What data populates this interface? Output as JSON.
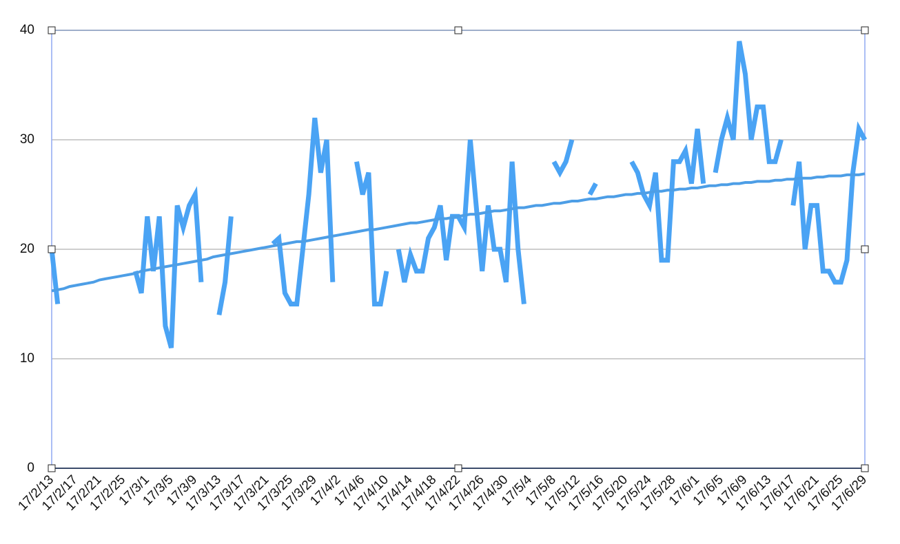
{
  "chart_data": {
    "type": "line",
    "categories": [
      "17/2/13",
      null,
      null,
      null,
      "17/2/17",
      null,
      null,
      null,
      "17/2/21",
      null,
      null,
      null,
      "17/2/25",
      null,
      null,
      null,
      "17/3/1",
      null,
      null,
      null,
      "17/3/5",
      null,
      null,
      null,
      "17/3/9",
      null,
      null,
      null,
      "17/3/13",
      null,
      null,
      null,
      "17/3/17",
      null,
      null,
      null,
      "17/3/21",
      null,
      null,
      null,
      "17/3/25",
      null,
      null,
      null,
      "17/3/29",
      null,
      null,
      null,
      "17/4/2",
      null,
      null,
      null,
      "17/4/6",
      null,
      null,
      null,
      "17/4/10",
      null,
      null,
      null,
      "17/4/14",
      null,
      null,
      null,
      "17/4/18",
      null,
      null,
      null,
      "17/4/22",
      null,
      null,
      null,
      "17/4/26",
      null,
      null,
      null,
      "17/4/30",
      null,
      null,
      null,
      "17/5/4",
      null,
      null,
      null,
      "17/5/8",
      null,
      null,
      null,
      "17/5/12",
      null,
      null,
      null,
      "17/5/16",
      null,
      null,
      null,
      "17/5/20",
      null,
      null,
      null,
      "17/5/24",
      null,
      null,
      null,
      "17/5/28",
      null,
      null,
      null,
      "17/6/1",
      null,
      null,
      null,
      "17/6/5",
      null,
      null,
      null,
      "17/6/9",
      null,
      null,
      null,
      "17/6/13",
      null,
      null,
      null,
      "17/6/17",
      null,
      null,
      null,
      "17/6/21",
      null,
      null,
      null,
      "17/6/25",
      null,
      null,
      null,
      "17/6/29"
    ],
    "series": [
      {
        "color": "#4aa3f4",
        "values": [
          20,
          15,
          null,
          null,
          null,
          null,
          null,
          null,
          null,
          null,
          null,
          null,
          null,
          null,
          18,
          16,
          23,
          18,
          23,
          13,
          11,
          24,
          22,
          24,
          25,
          17,
          null,
          null,
          14,
          17,
          23,
          null,
          null,
          null,
          null,
          null,
          null,
          20.5,
          21,
          16,
          15,
          15,
          20,
          25,
          32,
          27,
          30,
          17,
          null,
          null,
          null,
          28,
          25,
          27,
          15,
          15,
          18,
          null,
          20,
          17,
          19.5,
          18,
          18,
          21,
          22,
          24,
          19,
          23,
          23,
          22,
          30,
          24,
          18,
          24,
          20,
          20,
          17,
          28,
          20,
          15,
          null,
          null,
          null,
          null,
          28,
          27,
          28,
          30,
          null,
          null,
          25,
          26,
          null,
          null,
          null,
          null,
          null,
          28,
          27,
          25,
          24,
          27,
          19,
          19,
          28,
          28,
          29,
          26,
          31,
          26,
          null,
          27,
          30,
          32,
          30,
          39,
          36,
          30,
          33,
          33,
          28,
          28,
          30,
          null,
          24,
          28,
          20,
          24,
          24,
          18,
          18,
          17,
          17,
          19,
          27,
          31,
          30
        ]
      },
      {
        "color": "#4d9ee6",
        "values": [
          16.2,
          16.3,
          16.4,
          16.6,
          16.7,
          16.8,
          16.9,
          17.0,
          17.2,
          17.3,
          17.4,
          17.5,
          17.6,
          17.7,
          17.8,
          18.0,
          18.1,
          18.2,
          18.3,
          18.4,
          18.5,
          18.6,
          18.7,
          18.8,
          18.9,
          19.0,
          19.1,
          19.3,
          19.4,
          19.5,
          19.6,
          19.7,
          19.8,
          19.9,
          20.0,
          20.1,
          20.2,
          20.3,
          20.4,
          20.5,
          20.6,
          20.7,
          20.7,
          20.8,
          20.9,
          21.0,
          21.1,
          21.2,
          21.3,
          21.4,
          21.5,
          21.6,
          21.7,
          21.8,
          21.8,
          21.9,
          22.0,
          22.1,
          22.2,
          22.3,
          22.4,
          22.4,
          22.5,
          22.6,
          22.7,
          22.8,
          22.8,
          22.9,
          23.0,
          23.1,
          23.2,
          23.2,
          23.3,
          23.4,
          23.5,
          23.5,
          23.6,
          23.7,
          23.8,
          23.8,
          23.9,
          24.0,
          24.0,
          24.1,
          24.2,
          24.2,
          24.3,
          24.4,
          24.4,
          24.5,
          24.6,
          24.6,
          24.7,
          24.8,
          24.8,
          24.9,
          25.0,
          25.0,
          25.1,
          25.1,
          25.2,
          25.3,
          25.3,
          25.4,
          25.4,
          25.5,
          25.5,
          25.6,
          25.6,
          25.7,
          25.8,
          25.8,
          25.9,
          25.9,
          26.0,
          26.0,
          26.1,
          26.1,
          26.2,
          26.2,
          26.2,
          26.3,
          26.3,
          26.4,
          26.4,
          26.5,
          26.5,
          26.5,
          26.6,
          26.6,
          26.7,
          26.7,
          26.7,
          26.8,
          26.8,
          26.8,
          26.9
        ]
      }
    ],
    "ylim": [
      0,
      40
    ],
    "yticks": [
      0,
      10,
      20,
      30,
      40
    ],
    "grid": true
  }
}
